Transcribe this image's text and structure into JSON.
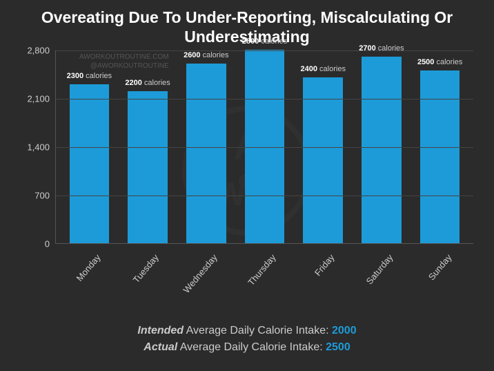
{
  "title": "Overeating Due To Under-Reporting, Miscalculating Or Underestimating",
  "watermark": {
    "line1": "AWORKOUTROUTINE.COM",
    "line2": "@AWORKOUTROUTINE"
  },
  "chart": {
    "type": "bar",
    "bar_color": "#1d9bd8",
    "background_color": "#2b2b2b",
    "grid_color": "#444444",
    "axis_color": "#555555",
    "text_color": "#cccccc",
    "title_color": "#ffffff",
    "label_fontsize": 11,
    "tick_fontsize": 13,
    "bar_width": 0.68,
    "ylim": [
      0,
      2800
    ],
    "yticks": [
      0,
      700,
      1400,
      2100,
      2800
    ],
    "ytick_labels": [
      "0",
      "700",
      "1,400",
      "2,100",
      "2,800"
    ],
    "unit": "calories",
    "categories": [
      "Monday",
      "Tuesday",
      "Wednesday",
      "Thursday",
      "Friday",
      "Saturday",
      "Sunday"
    ],
    "values": [
      2300,
      2200,
      2600,
      2800,
      2400,
      2700,
      2500
    ]
  },
  "footer": {
    "intended_label_emph": "Intended",
    "intended_label_rest": " Average Daily Calorie Intake: ",
    "intended_value": "2000",
    "actual_label_emph": "Actual",
    "actual_label_rest": " Average Daily Calorie Intake: ",
    "actual_value": "2500"
  }
}
